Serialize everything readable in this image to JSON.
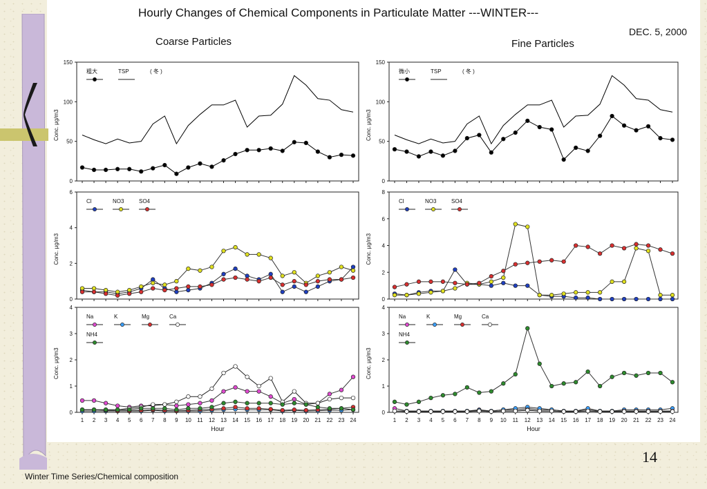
{
  "title": "Hourly Changes of Chemical Components in Particulate Matter  ---WINTER---",
  "date": "DEC. 5, 2000",
  "coarse_header": "Coarse Particles",
  "fine_header": "Fine Particles",
  "page_number": "14",
  "footer": "Winter Time Series/Chemical composition",
  "colors": {
    "Cl": "#1f3fbf",
    "NO3": "#e0e020",
    "SO4": "#d83030",
    "Na": "#e04ad0",
    "K": "#3aa0ff",
    "Mg": "#d83030",
    "Ca": "#ffffff",
    "NH4": "#2e8b2e",
    "line": "#000000"
  },
  "chart_data": [
    {
      "type": "line",
      "panel": "coarse-tsp",
      "ylabel": "Conc. μg/m3",
      "ylim": [
        0,
        150
      ],
      "yticks": [
        0,
        50,
        100,
        150
      ],
      "legend_note": "( 冬 )",
      "x": [
        1,
        2,
        3,
        4,
        5,
        6,
        7,
        8,
        9,
        10,
        11,
        12,
        13,
        14,
        15,
        16,
        17,
        18,
        19,
        20,
        21,
        22,
        23,
        24
      ],
      "series": [
        {
          "name": "粗大",
          "marker": true,
          "values": [
            17,
            14,
            14,
            15,
            15,
            12,
            16,
            20,
            9,
            17,
            22,
            18,
            26,
            34,
            39,
            39,
            41,
            38,
            49,
            48,
            37,
            30,
            33,
            32
          ]
        },
        {
          "name": "TSP",
          "marker": false,
          "values": [
            58,
            52,
            47,
            53,
            48,
            50,
            72,
            82,
            47,
            70,
            84,
            96,
            96,
            102,
            68,
            82,
            83,
            97,
            133,
            121,
            104,
            102,
            90,
            87
          ]
        }
      ]
    },
    {
      "type": "line",
      "panel": "fine-tsp",
      "ylabel": "Conc. μg/m3",
      "ylim": [
        0,
        150
      ],
      "yticks": [
        0,
        50,
        100,
        150
      ],
      "legend_note": "( 冬 )",
      "x": [
        1,
        2,
        3,
        4,
        5,
        6,
        7,
        8,
        9,
        10,
        11,
        12,
        13,
        14,
        15,
        16,
        17,
        18,
        19,
        20,
        21,
        22,
        23,
        24
      ],
      "series": [
        {
          "name": "微小",
          "marker": true,
          "values": [
            40,
            37,
            31,
            37,
            32,
            38,
            54,
            58,
            36,
            53,
            61,
            76,
            68,
            65,
            27,
            42,
            38,
            57,
            82,
            70,
            64,
            69,
            54,
            52
          ]
        },
        {
          "name": "TSP",
          "marker": false,
          "values": [
            58,
            52,
            47,
            53,
            48,
            50,
            72,
            82,
            47,
            70,
            84,
            96,
            96,
            102,
            68,
            82,
            83,
            97,
            133,
            121,
            104,
            102,
            90,
            87
          ]
        }
      ]
    },
    {
      "type": "line",
      "panel": "coarse-anions",
      "ylabel": "Conc. μg/m3",
      "ylim": [
        0,
        6
      ],
      "yticks": [
        0,
        2,
        4,
        6
      ],
      "x": [
        1,
        2,
        3,
        4,
        5,
        6,
        7,
        8,
        9,
        10,
        11,
        12,
        13,
        14,
        15,
        16,
        17,
        18,
        19,
        20,
        21,
        22,
        23,
        24
      ],
      "series": [
        {
          "name": "Cl",
          "color_key": "Cl",
          "values": [
            0.5,
            0.4,
            0.4,
            0.3,
            0.4,
            0.6,
            1.1,
            0.6,
            0.4,
            0.5,
            0.6,
            0.9,
            1.4,
            1.7,
            1.3,
            1.1,
            1.4,
            0.4,
            0.7,
            0.4,
            0.7,
            1.0,
            1.1,
            1.8
          ]
        },
        {
          "name": "NO3",
          "color_key": "NO3",
          "values": [
            0.6,
            0.6,
            0.5,
            0.4,
            0.5,
            0.7,
            0.9,
            0.8,
            1.0,
            1.7,
            1.6,
            1.8,
            2.7,
            2.9,
            2.5,
            2.5,
            2.3,
            1.3,
            1.5,
            0.9,
            1.3,
            1.5,
            1.8,
            1.6
          ]
        },
        {
          "name": "SO4",
          "color_key": "SO4",
          "values": [
            0.4,
            0.4,
            0.3,
            0.2,
            0.3,
            0.4,
            0.6,
            0.5,
            0.6,
            0.7,
            0.7,
            0.8,
            1.1,
            1.2,
            1.1,
            1.0,
            1.2,
            0.8,
            1.0,
            0.8,
            1.0,
            1.1,
            1.1,
            1.2
          ]
        }
      ]
    },
    {
      "type": "line",
      "panel": "fine-anions",
      "ylabel": "Conc. μg/m3",
      "ylim": [
        0,
        8
      ],
      "yticks": [
        0,
        2,
        4,
        6,
        8
      ],
      "x": [
        1,
        2,
        3,
        4,
        5,
        6,
        7,
        8,
        9,
        10,
        11,
        12,
        13,
        14,
        15,
        16,
        17,
        18,
        19,
        20,
        21,
        22,
        23,
        24
      ],
      "series": [
        {
          "name": "Cl",
          "color_key": "Cl",
          "values": [
            0.4,
            0.3,
            0.5,
            0.6,
            0.6,
            2.2,
            1.1,
            1.1,
            1.0,
            1.2,
            1.0,
            1.0,
            0.3,
            0.2,
            0.2,
            0.1,
            0.1,
            0.0,
            0.0,
            0.0,
            0.0,
            0.0,
            0.0,
            0.0
          ]
        },
        {
          "name": "NO3",
          "color_key": "NO3",
          "values": [
            0.3,
            0.3,
            0.4,
            0.5,
            0.6,
            0.8,
            1.2,
            1.1,
            1.3,
            1.6,
            5.6,
            5.4,
            0.3,
            0.3,
            0.4,
            0.5,
            0.5,
            0.5,
            1.3,
            1.3,
            3.8,
            3.6,
            0.3,
            0.3
          ]
        },
        {
          "name": "SO4",
          "color_key": "SO4",
          "values": [
            0.9,
            1.1,
            1.3,
            1.3,
            1.3,
            1.2,
            1.1,
            1.2,
            1.7,
            2.1,
            2.6,
            2.7,
            2.8,
            2.9,
            2.8,
            4.0,
            3.9,
            3.4,
            4.0,
            3.8,
            4.1,
            4.0,
            3.7,
            3.4
          ]
        }
      ]
    },
    {
      "type": "line",
      "panel": "coarse-cations",
      "ylabel": "Conc. μg/m3",
      "ylim": [
        0,
        4
      ],
      "yticks": [
        0,
        1,
        2,
        3,
        4
      ],
      "x": [
        1,
        2,
        3,
        4,
        5,
        6,
        7,
        8,
        9,
        10,
        11,
        12,
        13,
        14,
        15,
        16,
        17,
        18,
        19,
        20,
        21,
        22,
        23,
        24
      ],
      "series": [
        {
          "name": "Na",
          "color_key": "Na",
          "values": [
            0.45,
            0.45,
            0.35,
            0.25,
            0.2,
            0.25,
            0.25,
            0.3,
            0.25,
            0.3,
            0.35,
            0.45,
            0.8,
            0.95,
            0.8,
            0.8,
            0.6,
            0.35,
            0.5,
            0.3,
            0.35,
            0.7,
            0.85,
            1.35
          ]
        },
        {
          "name": "K",
          "color_key": "K",
          "values": [
            0.05,
            0.05,
            0.05,
            0.05,
            0.05,
            0.05,
            0.08,
            0.05,
            0.05,
            0.05,
            0.05,
            0.08,
            0.1,
            0.12,
            0.1,
            0.1,
            0.1,
            0.05,
            0.08,
            0.05,
            0.06,
            0.08,
            0.08,
            0.1
          ]
        },
        {
          "name": "Mg",
          "color_key": "Mg",
          "values": [
            0.1,
            0.1,
            0.08,
            0.06,
            0.06,
            0.08,
            0.1,
            0.08,
            0.06,
            0.08,
            0.1,
            0.12,
            0.15,
            0.2,
            0.15,
            0.15,
            0.12,
            0.08,
            0.1,
            0.08,
            0.1,
            0.12,
            0.15,
            0.2
          ]
        },
        {
          "name": "Ca",
          "color_key": "Ca",
          "values": [
            0.1,
            0.1,
            0.1,
            0.1,
            0.15,
            0.2,
            0.3,
            0.3,
            0.4,
            0.6,
            0.6,
            0.9,
            1.5,
            1.75,
            1.35,
            1.0,
            1.3,
            0.4,
            0.8,
            0.35,
            0.35,
            0.5,
            0.55,
            0.55
          ]
        },
        {
          "name": "NH4",
          "color_key": "NH4",
          "values": [
            0.1,
            0.1,
            0.1,
            0.1,
            0.1,
            0.15,
            0.15,
            0.15,
            0.1,
            0.15,
            0.15,
            0.2,
            0.35,
            0.4,
            0.35,
            0.35,
            0.35,
            0.3,
            0.35,
            0.3,
            0.2,
            0.15,
            0.15,
            0.1
          ]
        }
      ]
    },
    {
      "type": "line",
      "panel": "fine-cations",
      "ylabel": "Conc. μg/m3",
      "ylim": [
        0,
        4
      ],
      "yticks": [
        0,
        1,
        2,
        3,
        4
      ],
      "x": [
        1,
        2,
        3,
        4,
        5,
        6,
        7,
        8,
        9,
        10,
        11,
        12,
        13,
        14,
        15,
        16,
        17,
        18,
        19,
        20,
        21,
        22,
        23,
        24
      ],
      "series": [
        {
          "name": "Na",
          "color_key": "Na",
          "values": [
            0.15,
            0.05,
            0.05,
            0.05,
            0.05,
            0.05,
            0.05,
            0.1,
            0.05,
            0.1,
            0.1,
            0.15,
            0.1,
            0.1,
            0.05,
            0.05,
            0.1,
            0.05,
            0.05,
            0.05,
            0.05,
            0.05,
            0.05,
            0.05
          ]
        },
        {
          "name": "K",
          "color_key": "K",
          "values": [
            0.05,
            0.05,
            0.05,
            0.05,
            0.05,
            0.05,
            0.05,
            0.08,
            0.05,
            0.1,
            0.15,
            0.2,
            0.15,
            0.1,
            0.05,
            0.05,
            0.15,
            0.05,
            0.05,
            0.1,
            0.1,
            0.1,
            0.1,
            0.15
          ]
        },
        {
          "name": "Mg",
          "color_key": "Mg",
          "values": [
            0.05,
            0.03,
            0.03,
            0.03,
            0.03,
            0.03,
            0.03,
            0.05,
            0.03,
            0.05,
            0.05,
            0.1,
            0.05,
            0.05,
            0.03,
            0.03,
            0.05,
            0.03,
            0.03,
            0.05,
            0.05,
            0.05,
            0.05,
            0.05
          ]
        },
        {
          "name": "Ca",
          "color_key": "Ca",
          "values": [
            0.05,
            0.03,
            0.03,
            0.03,
            0.03,
            0.03,
            0.03,
            0.05,
            0.03,
            0.05,
            0.05,
            0.08,
            0.05,
            0.05,
            0.03,
            0.03,
            0.05,
            0.03,
            0.03,
            0.03,
            0.03,
            0.03,
            0.03,
            0.03
          ]
        },
        {
          "name": "NH4",
          "color_key": "NH4",
          "values": [
            0.4,
            0.3,
            0.4,
            0.55,
            0.65,
            0.7,
            0.95,
            0.75,
            0.8,
            1.1,
            1.45,
            3.2,
            1.85,
            1.0,
            1.1,
            1.15,
            1.55,
            1.0,
            1.35,
            1.5,
            1.4,
            1.5,
            1.5,
            1.15
          ]
        }
      ]
    }
  ],
  "x_axis_label": "Hour"
}
